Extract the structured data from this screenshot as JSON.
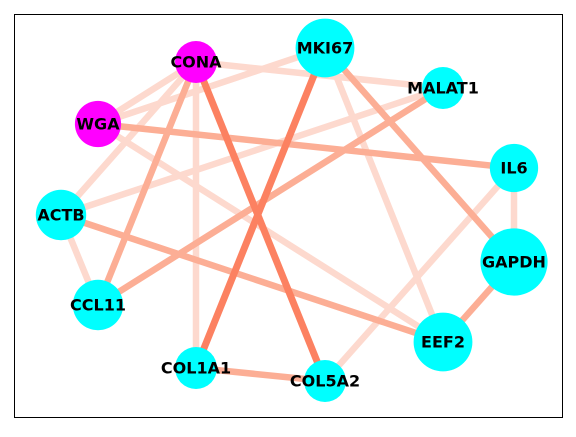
{
  "graph": {
    "colors": {
      "magenta_node": "#ff00ff",
      "cyan_node": "#00ffff",
      "edge_dark": "#fc8161",
      "edge_mid": "#fcae95",
      "edge_light": "#fdd9ce",
      "frame": "#000000"
    },
    "nodes": [
      {
        "id": "CONA",
        "label": "CONA",
        "color_key": "magenta_node",
        "weight": 1.0
      },
      {
        "id": "MKI67",
        "label": "MKI67",
        "color_key": "cyan_node",
        "weight": 1.4
      },
      {
        "id": "MALAT1",
        "label": "MALAT1",
        "color_key": "cyan_node",
        "weight": 1.0
      },
      {
        "id": "WGA",
        "label": "WGA",
        "color_key": "magenta_node",
        "weight": 1.1
      },
      {
        "id": "IL6",
        "label": "IL6",
        "color_key": "cyan_node",
        "weight": 1.15
      },
      {
        "id": "ACTB",
        "label": "ACTB",
        "color_key": "cyan_node",
        "weight": 1.2
      },
      {
        "id": "GAPDH",
        "label": "GAPDH",
        "color_key": "cyan_node",
        "weight": 1.6
      },
      {
        "id": "CCL11",
        "label": "CCL11",
        "color_key": "cyan_node",
        "weight": 1.2
      },
      {
        "id": "EEF2",
        "label": "EEF2",
        "color_key": "cyan_node",
        "weight": 1.4
      },
      {
        "id": "COL1A1",
        "label": "COL1A1",
        "color_key": "cyan_node",
        "weight": 1.0
      },
      {
        "id": "COL5A2",
        "label": "COL5A2",
        "color_key": "cyan_node",
        "weight": 1.0
      }
    ],
    "edges": [
      {
        "source": "CONA",
        "target": "MALAT1",
        "strength": "light"
      },
      {
        "source": "CONA",
        "target": "WGA",
        "strength": "light"
      },
      {
        "source": "CONA",
        "target": "CCL11",
        "strength": "mid"
      },
      {
        "source": "CONA",
        "target": "COL1A1",
        "strength": "light"
      },
      {
        "source": "CONA",
        "target": "COL5A2",
        "strength": "dark"
      },
      {
        "source": "CONA",
        "target": "ACTB",
        "strength": "light"
      },
      {
        "source": "MKI67",
        "target": "WGA",
        "strength": "light"
      },
      {
        "source": "MKI67",
        "target": "COL1A1",
        "strength": "dark"
      },
      {
        "source": "MKI67",
        "target": "GAPDH",
        "strength": "mid"
      },
      {
        "source": "MKI67",
        "target": "EEF2",
        "strength": "light"
      },
      {
        "source": "MALAT1",
        "target": "ACTB",
        "strength": "light"
      },
      {
        "source": "MALAT1",
        "target": "CCL11",
        "strength": "mid"
      },
      {
        "source": "WGA",
        "target": "IL6",
        "strength": "mid"
      },
      {
        "source": "WGA",
        "target": "EEF2",
        "strength": "light"
      },
      {
        "source": "IL6",
        "target": "GAPDH",
        "strength": "light"
      },
      {
        "source": "IL6",
        "target": "COL5A2",
        "strength": "light"
      },
      {
        "source": "ACTB",
        "target": "CCL11",
        "strength": "light"
      },
      {
        "source": "ACTB",
        "target": "EEF2",
        "strength": "mid"
      },
      {
        "source": "GAPDH",
        "target": "EEF2",
        "strength": "mid"
      },
      {
        "source": "COL1A1",
        "target": "COL5A2",
        "strength": "mid"
      }
    ]
  }
}
